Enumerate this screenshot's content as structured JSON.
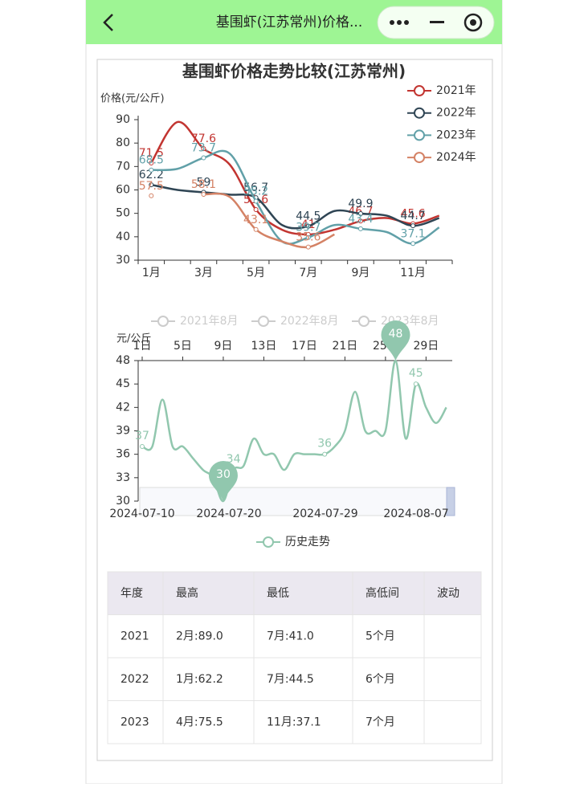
{
  "nav": {
    "title": "基围虾(江苏常州)价格..."
  },
  "chart_data": [
    {
      "type": "line",
      "title": "基围虾价格走势比较(江苏常州)",
      "y_label": "价格(元/公斤)",
      "categories": [
        "1月",
        null,
        "3月",
        null,
        "5月",
        null,
        "7月",
        null,
        "9月",
        null,
        "11月",
        null
      ],
      "ylim": [
        30,
        90
      ],
      "yticks": [
        30,
        40,
        50,
        60,
        70,
        80,
        90
      ],
      "smooth": true,
      "legend": "top-right",
      "series": [
        {
          "name": "2021年",
          "color": "#c23531",
          "values": [
            71.5,
            89,
            77.6,
            70.8,
            51.6,
            43,
            41,
            43,
            46.7,
            48,
            45.6,
            49
          ]
        },
        {
          "name": "2022年",
          "color": "#2f4554",
          "values": [
            62.2,
            60,
            59,
            58,
            56.7,
            45,
            44.5,
            51,
            49.9,
            49,
            44.7,
            48
          ]
        },
        {
          "name": "2023年",
          "color": "#61a0a8",
          "values": [
            68.5,
            69,
            73.7,
            75.5,
            55.2,
            38,
            39.7,
            45,
            43.4,
            42,
            37.1,
            44
          ]
        },
        {
          "name": "2024年",
          "color": "#d48265",
          "values": [
            57.5,
            null,
            58.1,
            57,
            43.1,
            38,
            35.6,
            41,
            null,
            null,
            null,
            null
          ]
        }
      ]
    },
    {
      "type": "line",
      "y_label": "元/公斤",
      "legend_inactive": [
        "2021年8月",
        "2022年8月",
        "2023年8月"
      ],
      "categories": [
        "1日",
        null,
        null,
        null,
        "5日",
        null,
        null,
        null,
        "9日",
        null,
        null,
        null,
        "13日",
        null,
        null,
        null,
        "17日",
        null,
        null,
        null,
        "21日",
        null,
        null,
        null,
        "25日",
        null,
        null,
        null,
        "29日",
        null,
        null
      ],
      "ylim": [
        30,
        48
      ],
      "yticks": [
        30,
        33,
        36,
        39,
        42,
        45,
        48
      ],
      "smooth": true,
      "zoom_labels": [
        "2024-07-10",
        "2024-07-20",
        "2024-07-29",
        "2024-08-07"
      ],
      "series": [
        {
          "name": "历史走势",
          "color": "#91c7ae",
          "values": [
            37,
            37,
            43,
            37,
            37,
            35.5,
            34,
            33,
            30,
            34,
            34.5,
            38,
            36,
            36,
            34,
            36,
            36,
            36,
            36,
            37,
            39,
            44,
            39,
            39,
            39,
            48,
            38,
            45,
            42,
            40,
            42
          ]
        }
      ]
    }
  ],
  "table": {
    "header": [
      "年度",
      "最高",
      "最低",
      "高低间",
      "波动"
    ],
    "rows": [
      [
        "2021",
        "2月:89.0",
        "7月:41.0",
        "5个月",
        ""
      ],
      [
        "2022",
        "1月:62.2",
        "7月:44.5",
        "6个月",
        ""
      ],
      [
        "2023",
        "4月:75.5",
        "11月:37.1",
        "7个月",
        ""
      ]
    ]
  }
}
